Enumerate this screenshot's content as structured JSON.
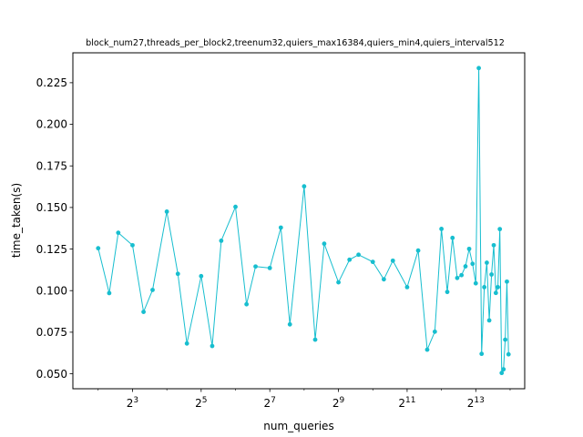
{
  "chart_data": {
    "type": "line",
    "title": "block_num27,threads_per_block2,treenum32,quiers_max16384,quiers_min4,quiers_interval512",
    "xlabel": "num_queries",
    "ylabel": "time_taken(s)",
    "x_scale": "log2",
    "xlim": [
      2.4,
      22000
    ],
    "ylim": [
      0.041,
      0.243
    ],
    "grid": false,
    "color": "#17becf",
    "x_ticks": [
      {
        "value": 8,
        "base": "2",
        "exp": "3"
      },
      {
        "value": 32,
        "base": "2",
        "exp": "5"
      },
      {
        "value": 128,
        "base": "2",
        "exp": "7"
      },
      {
        "value": 512,
        "base": "2",
        "exp": "9"
      },
      {
        "value": 2048,
        "base": "2",
        "exp": "11"
      },
      {
        "value": 8192,
        "base": "2",
        "exp": "13"
      }
    ],
    "y_ticks": [
      {
        "value": 0.05,
        "label": "0.050"
      },
      {
        "value": 0.075,
        "label": "0.075"
      },
      {
        "value": 0.1,
        "label": "0.100"
      },
      {
        "value": 0.125,
        "label": "0.125"
      },
      {
        "value": 0.15,
        "label": "0.150"
      },
      {
        "value": 0.175,
        "label": "0.175"
      },
      {
        "value": 0.2,
        "label": "0.200"
      },
      {
        "value": 0.225,
        "label": "0.225"
      }
    ],
    "series": [
      {
        "x": [
          4,
          5,
          6,
          8,
          10,
          12,
          16,
          20,
          24,
          32,
          40,
          48,
          64,
          80,
          96,
          128,
          160,
          192,
          256,
          320,
          384,
          512,
          640,
          768,
          1024,
          1280,
          1536,
          2048,
          2560,
          3072,
          3584,
          4096,
          4608,
          5120,
          5632,
          6144,
          6656,
          7168,
          7680,
          8192,
          8704,
          9216,
          9728,
          10240,
          10752,
          11264,
          11776,
          12288,
          12800,
          13312,
          13824,
          14336
        ],
        "y": [
          0.1255,
          0.0985,
          0.1348,
          0.1273,
          0.0872,
          0.1004,
          0.1475,
          0.1101,
          0.0682,
          0.1087,
          0.0667,
          0.13,
          0.1504,
          0.0918,
          0.1145,
          0.1136,
          0.1379,
          0.0797,
          0.1627,
          0.0705,
          0.1282,
          0.105,
          0.1186,
          0.1216,
          0.1173,
          0.1068,
          0.118,
          0.1021,
          0.1241,
          0.0645,
          0.0753,
          0.1371,
          0.0992,
          0.1317,
          0.1076,
          0.1093,
          0.1146,
          0.1251,
          0.1161,
          0.1044,
          0.2338,
          0.062,
          0.1021,
          0.1168,
          0.0821,
          0.1097,
          0.1273,
          0.0986,
          0.1021,
          0.137,
          0.0505,
          0.0527
        ]
      }
    ],
    "tail": {
      "x": [
        14848,
        15360,
        15872
      ],
      "y": [
        0.0705,
        0.1054,
        0.0617
      ]
    }
  }
}
